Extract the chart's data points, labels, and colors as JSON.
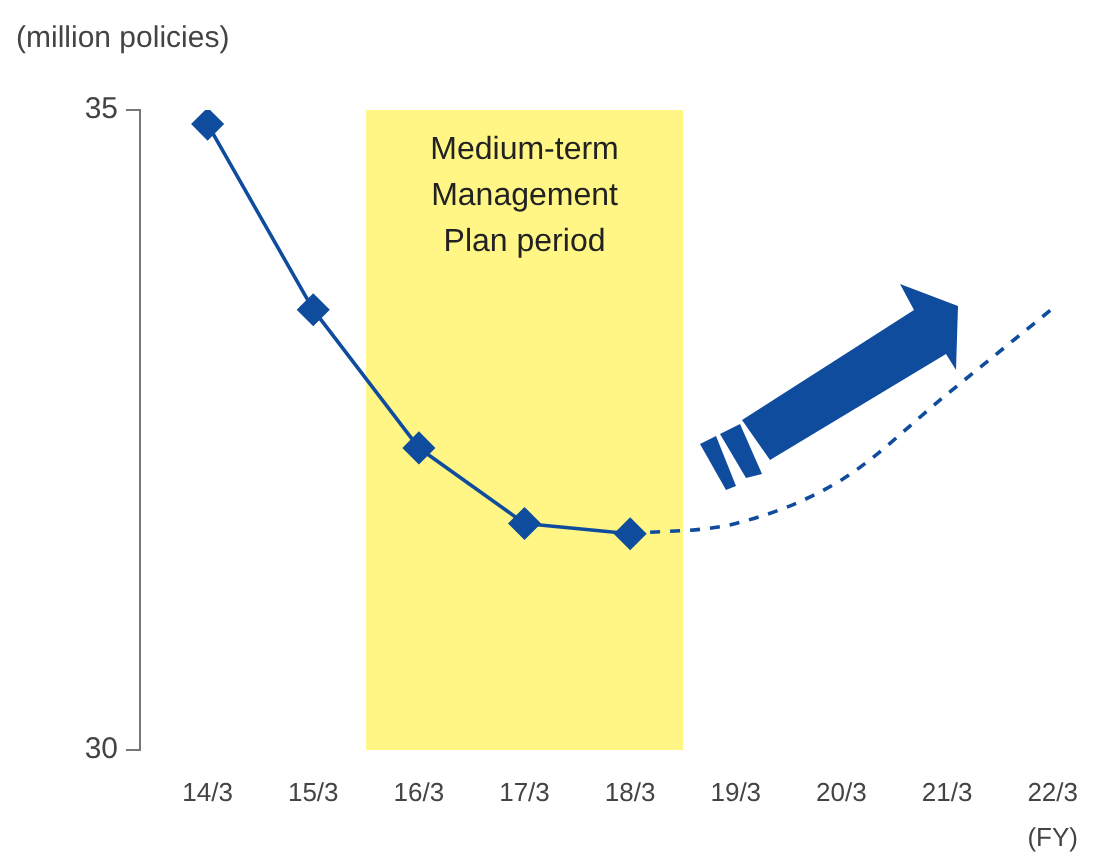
{
  "chart_data": {
    "type": "line",
    "ylabel": "(million policies)",
    "xlabel": "(FY)",
    "categories": [
      "14/3",
      "15/3",
      "16/3",
      "17/3",
      "18/3",
      "19/3",
      "20/3",
      "21/3",
      "22/3"
    ],
    "series": [
      {
        "color": "#0f4c9e",
        "values": [
          34.89,
          33.44,
          32.36,
          31.77,
          31.69,
          null,
          null,
          null,
          null
        ],
        "marker": "diamond",
        "line_style": "solid"
      },
      {
        "color": "#0f4c9e",
        "values": [
          null,
          null,
          null,
          null,
          31.69,
          31.77,
          32.11,
          32.78,
          33.45
        ],
        "marker": "none",
        "line_style": "dashed"
      }
    ],
    "ylim": [
      30,
      35
    ],
    "yticks": [
      30,
      35
    ],
    "grid": false,
    "legend": false,
    "bands": [
      {
        "axis": "x",
        "from": "16/3",
        "to": "18/3",
        "label": "Medium-term\nManagement\nPlan period",
        "color": "#fff685"
      }
    ]
  }
}
